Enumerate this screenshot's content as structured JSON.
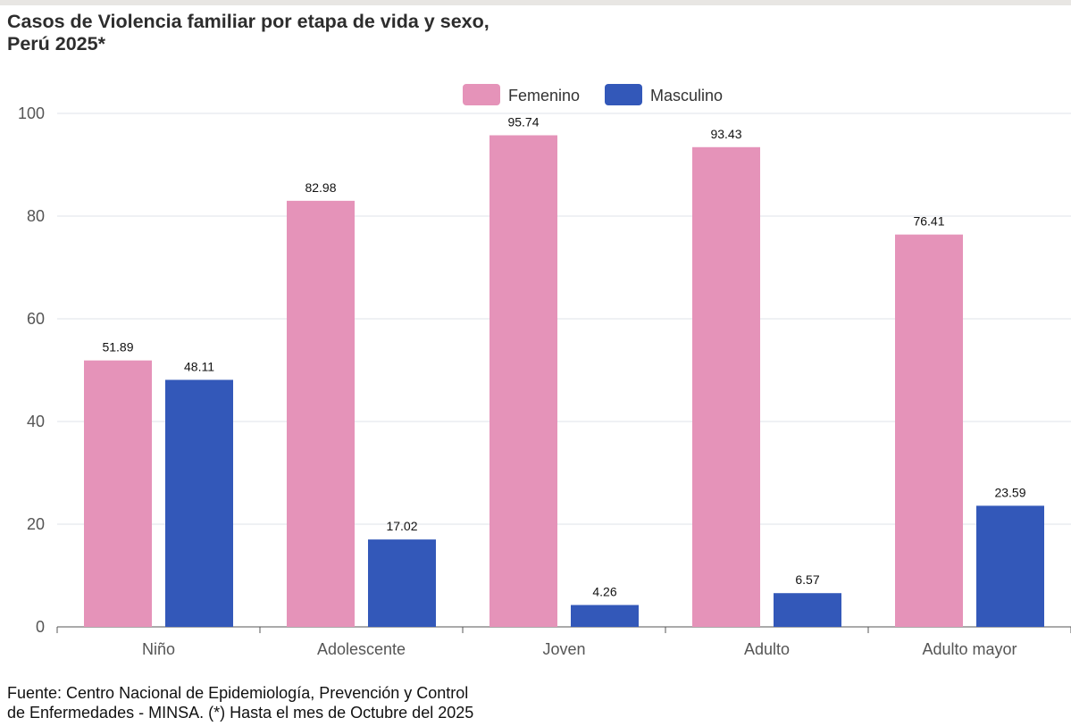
{
  "title_lines": [
    "Casos de Violencia familiar por etapa de vida y sexo,",
    "Perú 2025*"
  ],
  "source_lines": [
    "Fuente: Centro Nacional de Epidemiología, Prevención y Control",
    "de Enfermedades - MINSA. (*) Hasta el mes de Octubre del 2025"
  ],
  "chart_data": {
    "type": "bar",
    "title": "Casos de Violencia familiar por etapa de vida y sexo, Perú 2025*",
    "xlabel": "",
    "ylabel": "",
    "categories": [
      "Niño",
      "Adolescente",
      "Joven",
      "Adulto",
      "Adulto mayor"
    ],
    "series": [
      {
        "name": "Femenino",
        "color": "#e593b9",
        "values": [
          51.89,
          82.98,
          95.74,
          93.43,
          76.41
        ]
      },
      {
        "name": "Masculino",
        "color": "#3358b9",
        "values": [
          48.11,
          17.02,
          4.26,
          6.57,
          23.59
        ]
      }
    ],
    "ylim": [
      0,
      100
    ],
    "yticks": [
      0,
      20,
      40,
      60,
      80,
      100
    ],
    "grid": true,
    "legend": "top-center"
  }
}
